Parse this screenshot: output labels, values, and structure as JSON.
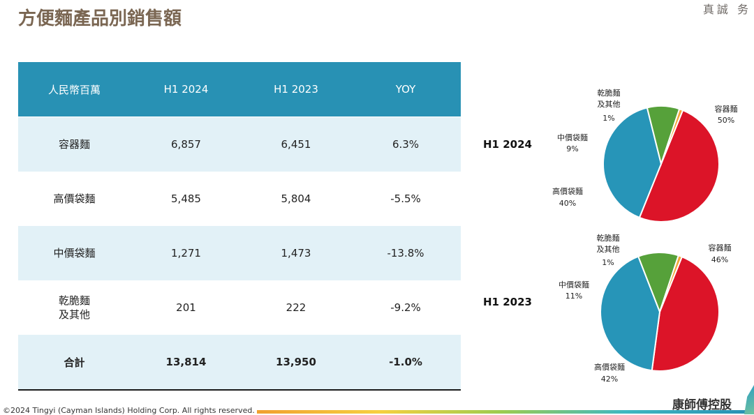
{
  "header": {
    "title": "方便麵產品別銷售額",
    "slogan": "真誠 务"
  },
  "table": {
    "columns": [
      "人民幣百萬",
      "H1 2024",
      "H1 2023",
      "YOY"
    ],
    "rows": [
      {
        "label": "容器麵",
        "h1_2024": "6,857",
        "h1_2023": "6,451",
        "yoy": "6.3%"
      },
      {
        "label": "高價袋麵",
        "h1_2024": "5,485",
        "h1_2023": "5,804",
        "yoy": "-5.5%"
      },
      {
        "label": "中價袋麵",
        "h1_2024": "1,271",
        "h1_2023": "1,473",
        "yoy": "-13.8%"
      },
      {
        "label": "乾脆麵\n及其他",
        "h1_2024": "201",
        "h1_2023": "222",
        "yoy": "-9.2%"
      }
    ],
    "total": {
      "label": "合計",
      "h1_2024": "13,814",
      "h1_2023": "13,950",
      "yoy": "-1.0%"
    }
  },
  "colors": {
    "container": "#dc1428",
    "premium_bag": "#2795b8",
    "mid_bag": "#56a13a",
    "snack": "#f2a63a",
    "header_bg": "#2891b4",
    "row_shade": "#e2f1f7"
  },
  "chart_data": [
    {
      "type": "pie",
      "title": "H1 2024",
      "slices": [
        {
          "name": "容器麵",
          "value": 50,
          "label": "50%",
          "color_key": "container"
        },
        {
          "name": "高價袋麵",
          "value": 40,
          "label": "40%",
          "color_key": "premium_bag"
        },
        {
          "name": "中價袋麵",
          "value": 9,
          "label": "9%",
          "color_key": "mid_bag"
        },
        {
          "name": "乾脆麵\n及其他",
          "value": 1,
          "label": "1%",
          "color_key": "snack"
        }
      ]
    },
    {
      "type": "pie",
      "title": "H1 2023",
      "slices": [
        {
          "name": "容器麵",
          "value": 46,
          "label": "46%",
          "color_key": "container"
        },
        {
          "name": "高價袋麵",
          "value": 42,
          "label": "42%",
          "color_key": "premium_bag"
        },
        {
          "name": "中價袋麵",
          "value": 11,
          "label": "11%",
          "color_key": "mid_bag"
        },
        {
          "name": "乾脆麵\n及其他",
          "value": 1,
          "label": "1%",
          "color_key": "snack"
        }
      ]
    }
  ],
  "footer": {
    "copyright": "©2024 Tingyi (Cayman Islands) Holding Corp. All rights reserved.",
    "company": "康師傅控股"
  }
}
